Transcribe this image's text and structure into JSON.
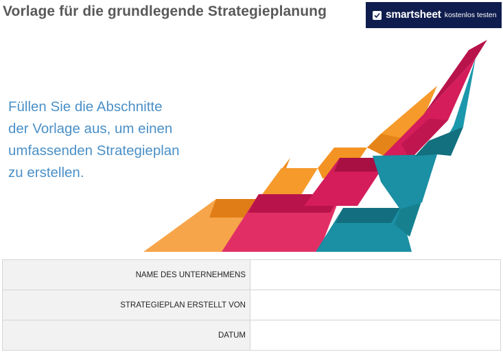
{
  "header": {
    "title": "Vorlage für die grundlegende Strategieplanung"
  },
  "banner": {
    "brand": "smartsheet",
    "cta": "kostenlos testen",
    "background": "#0f1d4e"
  },
  "hero": {
    "lines": [
      "Füllen Sie die Abschnitte",
      "der Vorlage aus, um einen",
      "umfassenden Strategieplan",
      "zu erstellen."
    ],
    "color": "#4a90c8"
  },
  "illustration": {
    "icon": "ascending-ribbons-illustration",
    "colors": {
      "orange": "#f59a2b",
      "crimson": "#d41d5a",
      "teal": "#1b8fa3"
    }
  },
  "info_table": {
    "rows": [
      {
        "label": "NAME DES UNTERNEHMENS",
        "value": ""
      },
      {
        "label": "STRATEGIEPLAN ERSTELLT VON",
        "value": ""
      },
      {
        "label": "DATUM",
        "value": ""
      }
    ]
  }
}
